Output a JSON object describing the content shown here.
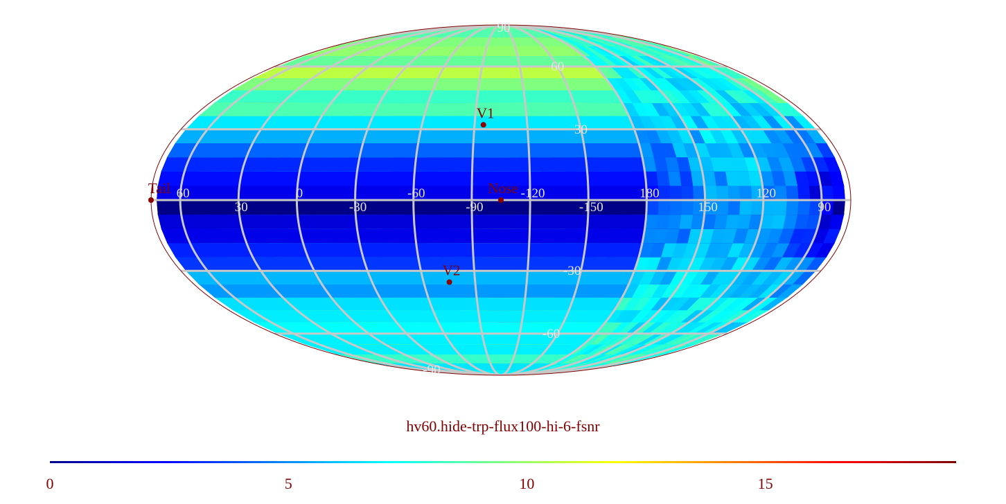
{
  "map": {
    "projection": "Mollweide",
    "grid": true,
    "longitude_labels": [
      "60",
      "30",
      "0",
      "-30",
      "-60",
      "-90",
      "-120",
      "-150",
      "180",
      "150",
      "120",
      "90"
    ],
    "latitude_labels": [
      "90",
      "60",
      "30",
      "-30",
      "-60",
      "-90"
    ],
    "markers": [
      {
        "name": "V1",
        "label": "V1",
        "lon": -95,
        "lat": 32
      },
      {
        "name": "Nose",
        "label": "Nose",
        "lon": -105,
        "lat": 0
      },
      {
        "name": "V2",
        "label": "V2",
        "lon": -75,
        "lat": -35
      },
      {
        "name": "Tail",
        "label": "Tail",
        "lon": 75,
        "lat": 0
      }
    ],
    "colormap": "jet",
    "value_range": [
      0,
      19
    ]
  },
  "title": "hv60.hide-trp-flux100-hi-6-fsnr",
  "colorbar": {
    "min": 0,
    "max": 19,
    "ticks": [
      "0",
      "5",
      "10",
      "15"
    ]
  },
  "colors": {
    "text": "#800000",
    "grid": "#c8c8c8",
    "grid_label": "#e6e6e6",
    "marker": "#8b0000",
    "outline": "#800000"
  }
}
